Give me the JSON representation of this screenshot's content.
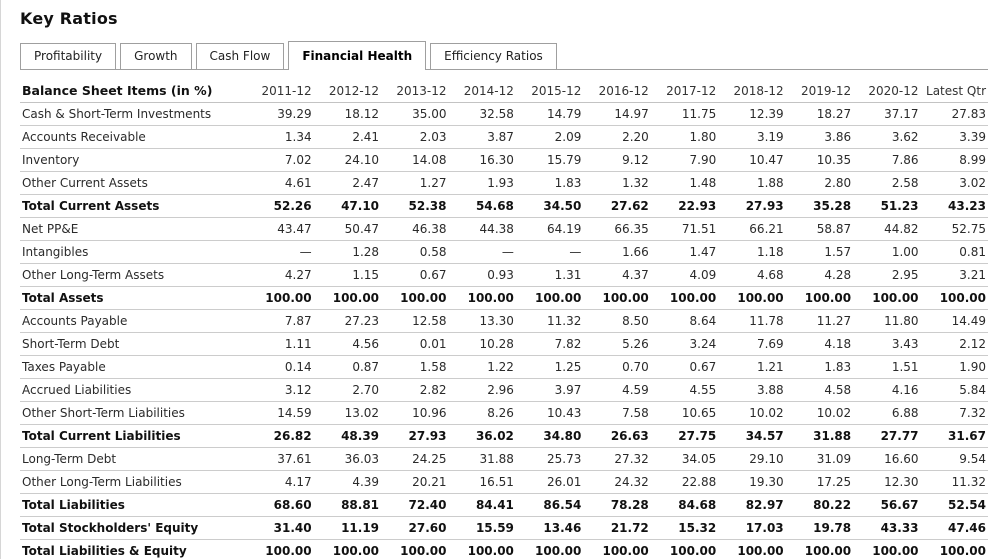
{
  "page": {
    "title": "Key Ratios"
  },
  "tabs": [
    {
      "label": "Profitability",
      "active": false
    },
    {
      "label": "Growth",
      "active": false
    },
    {
      "label": "Cash Flow",
      "active": false
    },
    {
      "label": "Financial Health",
      "active": true
    },
    {
      "label": "Efficiency Ratios",
      "active": false
    }
  ],
  "table": {
    "header_label": "Balance Sheet Items (in %)",
    "columns": [
      "2011-12",
      "2012-12",
      "2013-12",
      "2014-12",
      "2015-12",
      "2016-12",
      "2017-12",
      "2018-12",
      "2019-12",
      "2020-12",
      "Latest Qtr"
    ],
    "rows": [
      {
        "label": "Cash & Short-Term Investments",
        "bold": false,
        "values": [
          "39.29",
          "18.12",
          "35.00",
          "32.58",
          "14.79",
          "14.97",
          "11.75",
          "12.39",
          "18.27",
          "37.17",
          "27.83"
        ]
      },
      {
        "label": "Accounts Receivable",
        "bold": false,
        "values": [
          "1.34",
          "2.41",
          "2.03",
          "3.87",
          "2.09",
          "2.20",
          "1.80",
          "3.19",
          "3.86",
          "3.62",
          "3.39"
        ]
      },
      {
        "label": "Inventory",
        "bold": false,
        "values": [
          "7.02",
          "24.10",
          "14.08",
          "16.30",
          "15.79",
          "9.12",
          "7.90",
          "10.47",
          "10.35",
          "7.86",
          "8.99"
        ]
      },
      {
        "label": "Other Current Assets",
        "bold": false,
        "values": [
          "4.61",
          "2.47",
          "1.27",
          "1.93",
          "1.83",
          "1.32",
          "1.48",
          "1.88",
          "2.80",
          "2.58",
          "3.02"
        ]
      },
      {
        "label": "Total Current Assets",
        "bold": true,
        "values": [
          "52.26",
          "47.10",
          "52.38",
          "54.68",
          "34.50",
          "27.62",
          "22.93",
          "27.93",
          "35.28",
          "51.23",
          "43.23"
        ]
      },
      {
        "label": "Net PP&E",
        "bold": false,
        "values": [
          "43.47",
          "50.47",
          "46.38",
          "44.38",
          "64.19",
          "66.35",
          "71.51",
          "66.21",
          "58.87",
          "44.82",
          "52.75"
        ]
      },
      {
        "label": "Intangibles",
        "bold": false,
        "values": [
          "—",
          "1.28",
          "0.58",
          "—",
          "—",
          "1.66",
          "1.47",
          "1.18",
          "1.57",
          "1.00",
          "0.81"
        ]
      },
      {
        "label": "Other Long-Term Assets",
        "bold": false,
        "values": [
          "4.27",
          "1.15",
          "0.67",
          "0.93",
          "1.31",
          "4.37",
          "4.09",
          "4.68",
          "4.28",
          "2.95",
          "3.21"
        ]
      },
      {
        "label": "Total Assets",
        "bold": true,
        "values": [
          "100.00",
          "100.00",
          "100.00",
          "100.00",
          "100.00",
          "100.00",
          "100.00",
          "100.00",
          "100.00",
          "100.00",
          "100.00"
        ]
      },
      {
        "label": "Accounts Payable",
        "bold": false,
        "values": [
          "7.87",
          "27.23",
          "12.58",
          "13.30",
          "11.32",
          "8.50",
          "8.64",
          "11.78",
          "11.27",
          "11.80",
          "14.49"
        ]
      },
      {
        "label": "Short-Term Debt",
        "bold": false,
        "values": [
          "1.11",
          "4.56",
          "0.01",
          "10.28",
          "7.82",
          "5.26",
          "3.24",
          "7.69",
          "4.18",
          "3.43",
          "2.12"
        ]
      },
      {
        "label": "Taxes Payable",
        "bold": false,
        "values": [
          "0.14",
          "0.87",
          "1.58",
          "1.22",
          "1.25",
          "0.70",
          "0.67",
          "1.21",
          "1.83",
          "1.51",
          "1.90"
        ]
      },
      {
        "label": "Accrued Liabilities",
        "bold": false,
        "values": [
          "3.12",
          "2.70",
          "2.82",
          "2.96",
          "3.97",
          "4.59",
          "4.55",
          "3.88",
          "4.58",
          "4.16",
          "5.84"
        ]
      },
      {
        "label": "Other Short-Term Liabilities",
        "bold": false,
        "values": [
          "14.59",
          "13.02",
          "10.96",
          "8.26",
          "10.43",
          "7.58",
          "10.65",
          "10.02",
          "10.02",
          "6.88",
          "7.32"
        ]
      },
      {
        "label": "Total Current Liabilities",
        "bold": true,
        "values": [
          "26.82",
          "48.39",
          "27.93",
          "36.02",
          "34.80",
          "26.63",
          "27.75",
          "34.57",
          "31.88",
          "27.77",
          "31.67"
        ]
      },
      {
        "label": "Long-Term Debt",
        "bold": false,
        "values": [
          "37.61",
          "36.03",
          "24.25",
          "31.88",
          "25.73",
          "27.32",
          "34.05",
          "29.10",
          "31.09",
          "16.60",
          "9.54"
        ]
      },
      {
        "label": "Other Long-Term Liabilities",
        "bold": false,
        "values": [
          "4.17",
          "4.39",
          "20.21",
          "16.51",
          "26.01",
          "24.32",
          "22.88",
          "19.30",
          "17.25",
          "12.30",
          "11.32"
        ]
      },
      {
        "label": "Total Liabilities",
        "bold": true,
        "values": [
          "68.60",
          "88.81",
          "72.40",
          "84.41",
          "86.54",
          "78.28",
          "84.68",
          "82.97",
          "80.22",
          "56.67",
          "52.54"
        ]
      },
      {
        "label": "Total Stockholders' Equity",
        "bold": true,
        "values": [
          "31.40",
          "11.19",
          "27.60",
          "15.59",
          "13.46",
          "21.72",
          "15.32",
          "17.03",
          "19.78",
          "43.33",
          "47.46"
        ]
      },
      {
        "label": "Total Liabilities & Equity",
        "bold": true,
        "values": [
          "100.00",
          "100.00",
          "100.00",
          "100.00",
          "100.00",
          "100.00",
          "100.00",
          "100.00",
          "100.00",
          "100.00",
          "100.00"
        ]
      }
    ]
  }
}
